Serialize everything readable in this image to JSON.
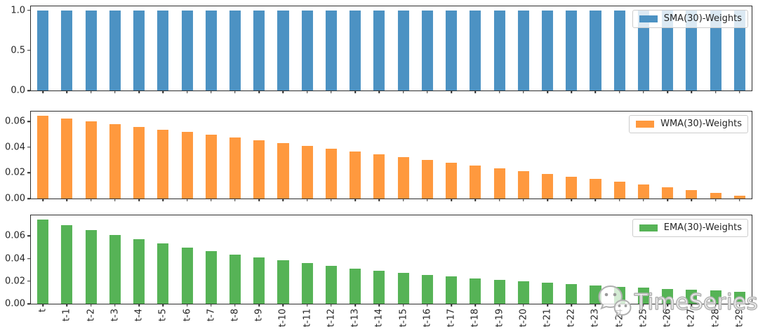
{
  "figure": {
    "background": "#ffffff",
    "watermark": {
      "text": "TimeSeries",
      "icon": "wechat-chat-bubbles-icon"
    }
  },
  "chart_data": {
    "type": "bar",
    "title": "",
    "xlabel": "",
    "ylabel": "",
    "grid": false,
    "legend_position": "upper-right",
    "xtick_rotation_deg": 90,
    "bar_width_fraction": 0.47,
    "categories": [
      "t",
      "t-1",
      "t-2",
      "t-3",
      "t-4",
      "t-5",
      "t-6",
      "t-7",
      "t-8",
      "t-9",
      "t-10",
      "t-11",
      "t-12",
      "t-13",
      "t-14",
      "t-15",
      "t-16",
      "t-17",
      "t-18",
      "t-19",
      "t-20",
      "t-21",
      "t-22",
      "t-23",
      "t-24",
      "t-25",
      "t-26",
      "t-27",
      "t-28",
      "t-29"
    ],
    "subplots": [
      {
        "name": "sma",
        "legend_label": "SMA(30)-Weights",
        "color": "#4C92C3",
        "ylim": [
          0,
          1.05
        ],
        "yticks": [
          {
            "label": "0.0",
            "value": 0.0
          },
          {
            "label": "0.5",
            "value": 0.5
          },
          {
            "label": "1.0",
            "value": 1.0
          }
        ],
        "values": [
          1.0,
          1.0,
          1.0,
          1.0,
          1.0,
          1.0,
          1.0,
          1.0,
          1.0,
          1.0,
          1.0,
          1.0,
          1.0,
          1.0,
          1.0,
          1.0,
          1.0,
          1.0,
          1.0,
          1.0,
          1.0,
          1.0,
          1.0,
          1.0,
          1.0,
          1.0,
          1.0,
          1.0,
          1.0,
          1.0
        ]
      },
      {
        "name": "wma",
        "legend_label": "WMA(30)-Weights",
        "color": "#FF993E",
        "ylim": [
          0,
          0.0677
        ],
        "yticks": [
          {
            "label": "0.00",
            "value": 0.0
          },
          {
            "label": "0.02",
            "value": 0.02
          },
          {
            "label": "0.04",
            "value": 0.04
          },
          {
            "label": "0.06",
            "value": 0.06
          }
        ],
        "values": [
          0.06452,
          0.06237,
          0.06022,
          0.05806,
          0.05591,
          0.05376,
          0.05161,
          0.04946,
          0.04731,
          0.04516,
          0.04301,
          0.04086,
          0.03871,
          0.03656,
          0.03441,
          0.03226,
          0.03011,
          0.02796,
          0.02581,
          0.02366,
          0.02151,
          0.01935,
          0.0172,
          0.01505,
          0.0129,
          0.01075,
          0.0086,
          0.00645,
          0.0043,
          0.00215
        ]
      },
      {
        "name": "ema",
        "legend_label": "EMA(30)-Weights",
        "color": "#56B356",
        "ylim": [
          0,
          0.0783
        ],
        "yticks": [
          {
            "label": "0.00",
            "value": 0.0
          },
          {
            "label": "0.02",
            "value": 0.02
          },
          {
            "label": "0.04",
            "value": 0.04
          },
          {
            "label": "0.06",
            "value": 0.06
          }
        ],
        "values": [
          0.07461,
          0.06979,
          0.06529,
          0.06108,
          0.05714,
          0.05345,
          0.05,
          0.04678,
          0.04376,
          0.04094,
          0.0383,
          0.03582,
          0.03351,
          0.03135,
          0.02933,
          0.02744,
          0.02567,
          0.02401,
          0.02246,
          0.02101,
          0.01966,
          0.01839,
          0.0172,
          0.01609,
          0.01505,
          0.01408,
          0.01317,
          0.01232,
          0.01153,
          0.01079
        ]
      }
    ]
  }
}
